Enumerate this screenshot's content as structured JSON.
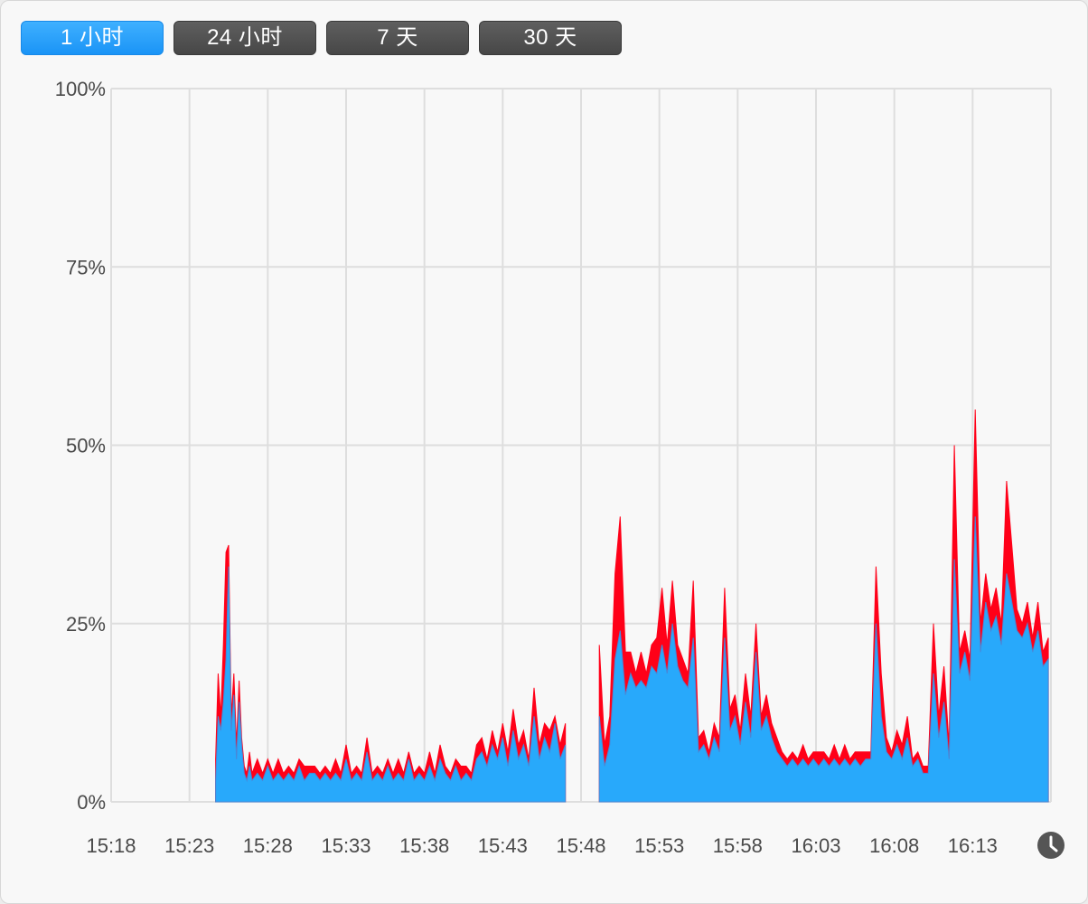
{
  "range_buttons": [
    {
      "label": "1 小时",
      "active": true
    },
    {
      "label": "24 小时",
      "active": false
    },
    {
      "label": "7 天",
      "active": false
    },
    {
      "label": "30 天",
      "active": false
    }
  ],
  "history_icon": "clock-icon",
  "colors": {
    "user": "#28a9fb",
    "system": "#ff0018",
    "grid": "#dedede",
    "active_button": "#1a94f6",
    "button": "#4d4d4d"
  },
  "chart_data": {
    "type": "area",
    "stacked": true,
    "ylim": [
      0,
      100
    ],
    "y_ticks": [
      {
        "value": 100,
        "label": "100%"
      },
      {
        "value": 75,
        "label": "75%"
      },
      {
        "value": 50,
        "label": "50%"
      },
      {
        "value": 25,
        "label": "25%"
      },
      {
        "value": 0,
        "label": "0%"
      }
    ],
    "xlim": [
      "15:18",
      "16:18"
    ],
    "x_ticks": [
      "15:18",
      "15:23",
      "15:28",
      "15:33",
      "15:38",
      "15:43",
      "15:48",
      "15:53",
      "15:58",
      "16:03",
      "16:08",
      "16:13"
    ],
    "grid": true,
    "series": [
      {
        "segments": [
          {
            "x": [
              "15:24:40",
              "15:24:50",
              "15:25:00",
              "15:25:10",
              "15:25:20",
              "15:25:30",
              "15:25:40",
              "15:25:50",
              "15:26:00",
              "15:26:10",
              "15:26:20",
              "15:26:30",
              "15:26:40",
              "15:26:50",
              "15:27:00",
              "15:27:20",
              "15:27:40",
              "15:28:00",
              "15:28:20",
              "15:28:40",
              "15:29:00",
              "15:29:20",
              "15:29:40",
              "15:30:00",
              "15:30:20",
              "15:30:40",
              "15:31:00",
              "15:31:20",
              "15:31:40",
              "15:32:00",
              "15:32:20",
              "15:32:40",
              "15:33:00",
              "15:33:20",
              "15:33:40",
              "15:34:00",
              "15:34:20",
              "15:34:40",
              "15:35:00",
              "15:35:20",
              "15:35:40",
              "15:36:00",
              "15:36:20",
              "15:36:40",
              "15:37:00",
              "15:37:20",
              "15:37:40",
              "15:38:00",
              "15:38:20",
              "15:38:40",
              "15:39:00",
              "15:39:20",
              "15:39:40",
              "15:40:00",
              "15:40:20",
              "15:40:40",
              "15:41:00",
              "15:41:20",
              "15:41:40",
              "15:42:00",
              "15:42:20",
              "15:42:40",
              "15:43:00",
              "15:43:20",
              "15:43:40",
              "15:44:00",
              "15:44:20",
              "15:44:40",
              "15:45:00",
              "15:45:20",
              "15:45:40",
              "15:46:00",
              "15:46:20",
              "15:46:40",
              "15:47:00"
            ],
            "user": [
              3,
              12,
              10,
              14,
              20,
              33,
              10,
              15,
              6,
              14,
              8,
              4,
              3,
              5,
              3,
              4,
              3,
              5,
              3,
              4,
              3,
              4,
              3,
              5,
              3,
              4,
              4,
              3,
              4,
              3,
              4,
              3,
              6,
              3,
              4,
              3,
              7,
              3,
              4,
              3,
              5,
              3,
              4,
              3,
              6,
              3,
              4,
              3,
              5,
              3,
              6,
              4,
              3,
              5,
              3,
              4,
              3,
              6,
              7,
              5,
              8,
              6,
              9,
              5,
              10,
              6,
              8,
              5,
              12,
              6,
              9,
              7,
              11,
              6,
              8
            ],
            "system": [
              3,
              6,
              2,
              8,
              15,
              3,
              2,
              3,
              2,
              3,
              1,
              1,
              1,
              2,
              1,
              2,
              1,
              1,
              1,
              2,
              1,
              1,
              1,
              1,
              2,
              1,
              1,
              1,
              1,
              1,
              2,
              1,
              2,
              1,
              1,
              1,
              2,
              1,
              1,
              1,
              1,
              1,
              2,
              1,
              1,
              1,
              1,
              1,
              2,
              1,
              2,
              1,
              1,
              1,
              2,
              1,
              1,
              2,
              2,
              1,
              2,
              1,
              2,
              2,
              3,
              2,
              2,
              1,
              4,
              2,
              2,
              3,
              1,
              2,
              3
            ]
          },
          {
            "x": [
              "15:49:10",
              "15:49:30",
              "15:49:50",
              "15:50:10",
              "15:50:30",
              "15:50:50",
              "15:51:10",
              "15:51:30",
              "15:51:50",
              "15:52:10",
              "15:52:30",
              "15:52:50",
              "15:53:10",
              "15:53:30",
              "15:53:50",
              "15:54:10",
              "15:54:30",
              "15:54:50",
              "15:55:10",
              "15:55:30",
              "15:55:50",
              "15:56:10",
              "15:56:30",
              "15:56:50",
              "15:57:10",
              "15:57:30",
              "15:57:50",
              "15:58:10",
              "15:58:30",
              "15:58:50",
              "15:59:10",
              "15:59:30",
              "15:59:50",
              "16:00:10",
              "16:00:30",
              "16:00:50",
              "16:01:10",
              "16:01:30",
              "16:01:50",
              "16:02:10",
              "16:02:30",
              "16:02:50",
              "16:03:10",
              "16:03:30",
              "16:03:50",
              "16:04:10",
              "16:04:30",
              "16:04:50",
              "16:05:10",
              "16:05:30",
              "16:05:50",
              "16:06:10",
              "16:06:30",
              "16:06:50",
              "16:07:10",
              "16:07:30",
              "16:07:50",
              "16:08:10",
              "16:08:30",
              "16:08:50",
              "16:09:10",
              "16:09:30",
              "16:09:50",
              "16:10:10",
              "16:10:30",
              "16:10:50",
              "16:11:10",
              "16:11:30",
              "16:11:50",
              "16:12:10",
              "16:12:30",
              "16:12:50",
              "16:13:10",
              "16:13:30",
              "16:13:50",
              "16:14:10",
              "16:14:30",
              "16:14:50",
              "16:15:10",
              "16:15:30",
              "16:15:50",
              "16:16:10",
              "16:16:30",
              "16:16:50",
              "16:17:10",
              "16:17:30",
              "16:17:50"
            ],
            "user": [
              12,
              5,
              8,
              20,
              24,
              15,
              18,
              16,
              17,
              16,
              19,
              18,
              22,
              18,
              25,
              19,
              17,
              16,
              23,
              7,
              8,
              6,
              9,
              7,
              23,
              10,
              12,
              8,
              14,
              9,
              21,
              10,
              12,
              9,
              7,
              6,
              5,
              6,
              5,
              6,
              5,
              6,
              5,
              6,
              5,
              6,
              5,
              6,
              5,
              6,
              5,
              6,
              6,
              25,
              12,
              7,
              6,
              8,
              6,
              9,
              5,
              6,
              4,
              4,
              18,
              9,
              14,
              6,
              34,
              18,
              21,
              17,
              40,
              21,
              28,
              24,
              26,
              22,
              32,
              28,
              24,
              23,
              25,
              21,
              24,
              19,
              20
            ],
            "system": [
              10,
              3,
              4,
              12,
              16,
              6,
              3,
              2,
              4,
              2,
              3,
              5,
              8,
              4,
              6,
              3,
              3,
              2,
              8,
              2,
              2,
              1,
              2,
              2,
              7,
              3,
              3,
              2,
              4,
              3,
              4,
              2,
              3,
              2,
              2,
              1,
              1,
              1,
              1,
              2,
              1,
              1,
              2,
              1,
              1,
              2,
              1,
              2,
              1,
              1,
              2,
              1,
              1,
              8,
              6,
              2,
              1,
              2,
              2,
              3,
              1,
              1,
              1,
              1,
              7,
              3,
              5,
              2,
              16,
              3,
              3,
              3,
              15,
              4,
              4,
              3,
              4,
              3,
              13,
              8,
              3,
              2,
              3,
              2,
              4,
              2,
              3
            ]
          }
        ]
      }
    ]
  }
}
